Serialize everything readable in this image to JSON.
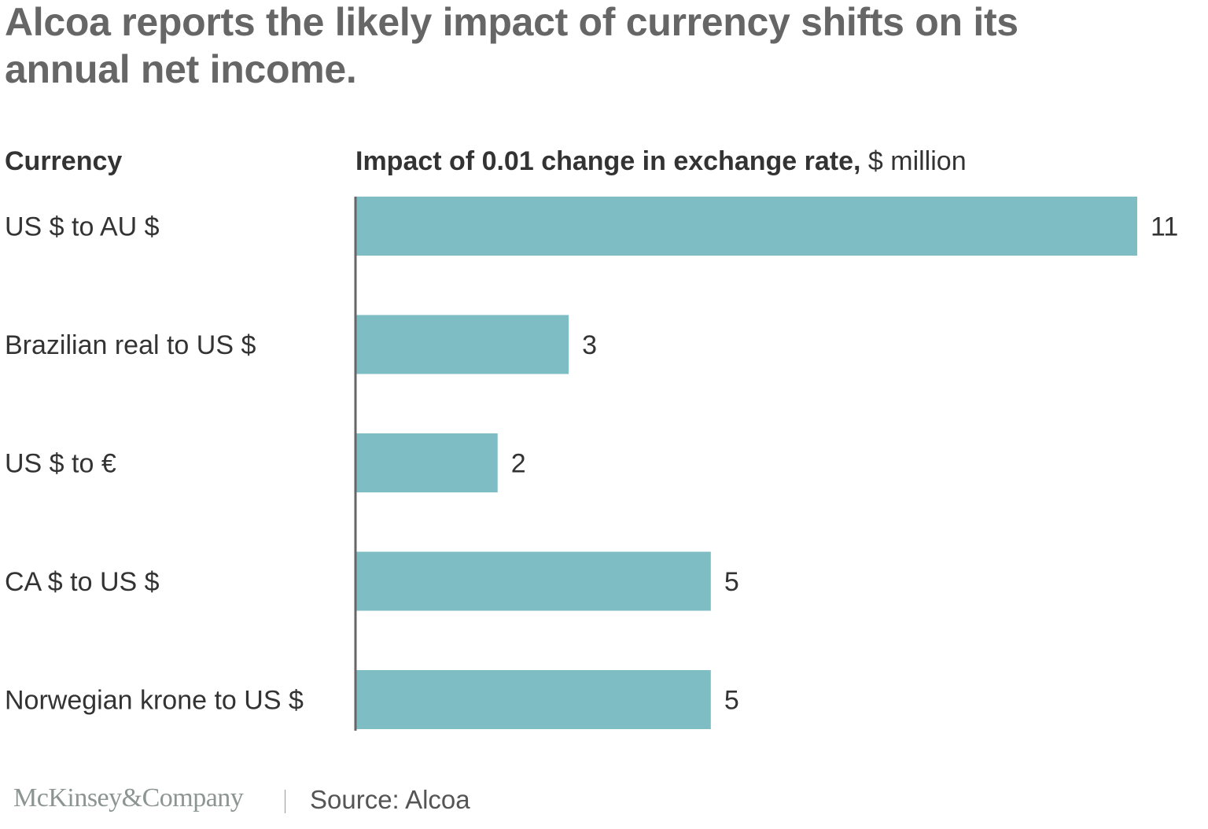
{
  "title": "Alcoa reports the likely impact of currency shifts on its annual net income.",
  "header": {
    "left": "Currency",
    "right_bold": "Impact of 0.01 change in exchange rate,",
    "right_unit": " $ million"
  },
  "footer": {
    "logo": "McKinsey&Company",
    "source": "Source: Alcoa"
  },
  "colors": {
    "bar": "#7fbdc5",
    "axis": "#666666",
    "text": "#333333",
    "title": "#666666"
  },
  "chart_data": {
    "type": "bar",
    "orientation": "horizontal",
    "title": "Alcoa reports the likely impact of currency shifts on its annual net income.",
    "xlabel": "Impact of 0.01 change in exchange rate, $ million",
    "ylabel": "Currency",
    "categories": [
      "US $ to AU $",
      "Brazilian real to US $",
      "US $ to €",
      "CA $ to US $",
      "Norwegian krone to US $"
    ],
    "values": [
      11,
      3,
      2,
      5,
      5
    ],
    "xlim": [
      0,
      11
    ],
    "grid": false,
    "data_labels": true,
    "source": "Source: Alcoa"
  }
}
